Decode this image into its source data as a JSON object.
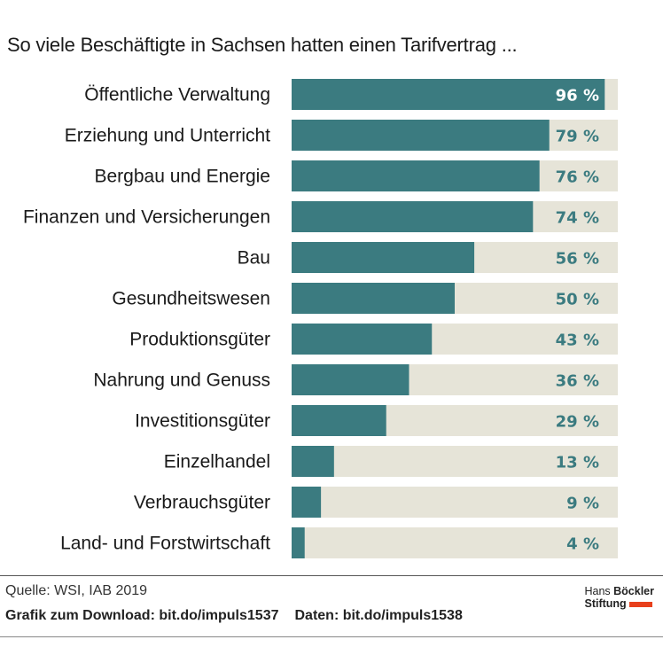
{
  "title": "So viele Beschäftigte in Sachsen hatten einen Tarifvertrag ...",
  "colors": {
    "bar": "#3b7b80",
    "track": "#e6e4d8",
    "value_text": "#3b7b80",
    "value_text_inside": "#ffffff",
    "brand_accent": "#e8401c"
  },
  "chart_data": {
    "type": "bar",
    "orientation": "horizontal",
    "title": "So viele Beschäftigte in Sachsen hatten einen Tarifvertrag ...",
    "unit": "%",
    "xlim": [
      0,
      100
    ],
    "categories": [
      "Öffentliche Verwaltung",
      "Erziehung und Unterricht",
      "Bergbau und Energie",
      "Finanzen und Versicherungen",
      "Bau",
      "Gesundheitswesen",
      "Produktionsgüter",
      "Nahrung und Genuss",
      "Investitionsgüter",
      "Einzelhandel",
      "Verbrauchsgüter",
      "Land- und Forstwirtschaft"
    ],
    "values": [
      96,
      79,
      76,
      74,
      56,
      50,
      43,
      36,
      29,
      13,
      9,
      4
    ],
    "value_labels": [
      "96 %",
      "79 %",
      "76 %",
      "74 %",
      "56 %",
      "50 %",
      "43 %",
      "36 %",
      "29 %",
      "13 %",
      "9 %",
      "4 %"
    ]
  },
  "footer": {
    "source": "Quelle: WSI, IAB 2019",
    "download": "Grafik zum Download: bit.do/impuls1537",
    "data": "Daten: bit.do/impuls1538"
  },
  "brand": {
    "line1_a": "Hans ",
    "line1_b": "Böckler",
    "line2": "Stiftung"
  }
}
